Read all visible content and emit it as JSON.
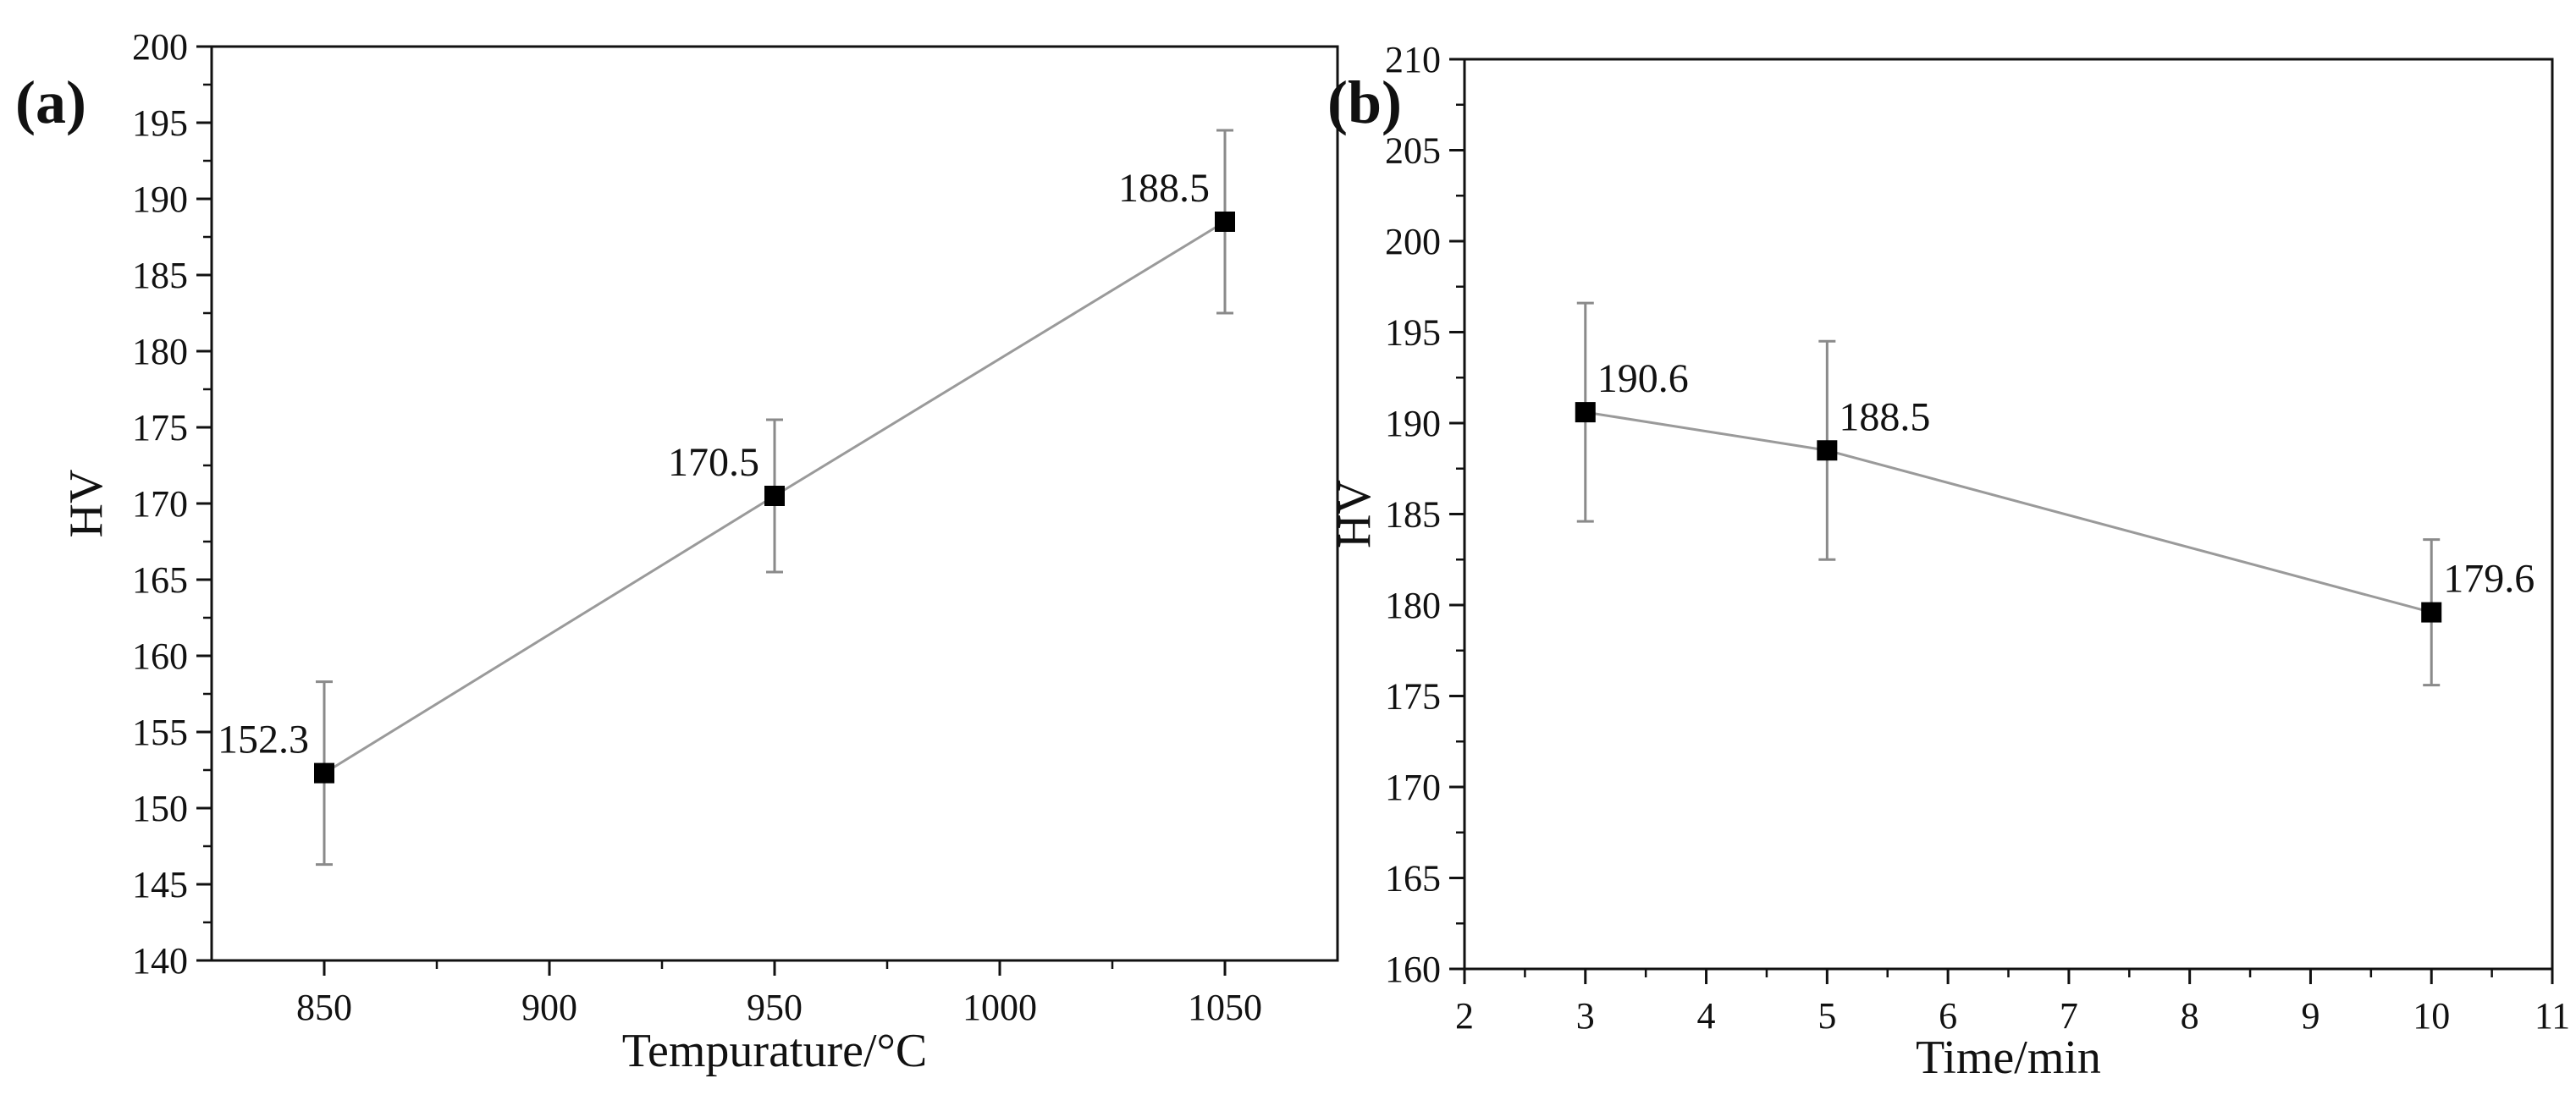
{
  "figure": {
    "panels": [
      "(a)",
      "(b)"
    ]
  },
  "chart_data": [
    {
      "panel": "(a)",
      "type": "line",
      "xlabel": "Tempurature/°C",
      "ylabel": "HV",
      "xlim": [
        825,
        1075
      ],
      "ylim": [
        140,
        200
      ],
      "xticks": [
        850,
        900,
        950,
        1000,
        1050
      ],
      "yticks": [
        140,
        145,
        150,
        155,
        160,
        165,
        170,
        175,
        180,
        185,
        190,
        195,
        200
      ],
      "marker": "square",
      "line_color": "#9a9a9a",
      "marker_color": "#000000",
      "grid": false,
      "points": [
        {
          "x": 850,
          "y": 152.3,
          "err_low": 146.3,
          "err_high": 158.3,
          "label": "152.3",
          "label_pos": "left"
        },
        {
          "x": 950,
          "y": 170.5,
          "err_low": 165.5,
          "err_high": 175.5,
          "label": "170.5",
          "label_pos": "left"
        },
        {
          "x": 1050,
          "y": 188.5,
          "err_low": 182.5,
          "err_high": 194.5,
          "label": "188.5",
          "label_pos": "left"
        }
      ]
    },
    {
      "panel": "(b)",
      "type": "line",
      "xlabel": "Time/min",
      "ylabel": "HV",
      "xlim": [
        2,
        11
      ],
      "ylim": [
        160,
        210
      ],
      "xticks": [
        2,
        3,
        4,
        5,
        6,
        7,
        8,
        9,
        10,
        11
      ],
      "yticks": [
        160,
        165,
        170,
        175,
        180,
        185,
        190,
        195,
        200,
        205,
        210
      ],
      "marker": "square",
      "line_color": "#9a9a9a",
      "marker_color": "#000000",
      "grid": false,
      "points": [
        {
          "x": 3,
          "y": 190.6,
          "err_low": 184.6,
          "err_high": 196.6,
          "label": "190.6",
          "label_pos": "right"
        },
        {
          "x": 5,
          "y": 188.5,
          "err_low": 182.5,
          "err_high": 194.5,
          "label": "188.5",
          "label_pos": "right"
        },
        {
          "x": 10,
          "y": 179.6,
          "err_low": 175.6,
          "err_high": 183.6,
          "label": "179.6",
          "label_pos": "right"
        }
      ]
    }
  ]
}
